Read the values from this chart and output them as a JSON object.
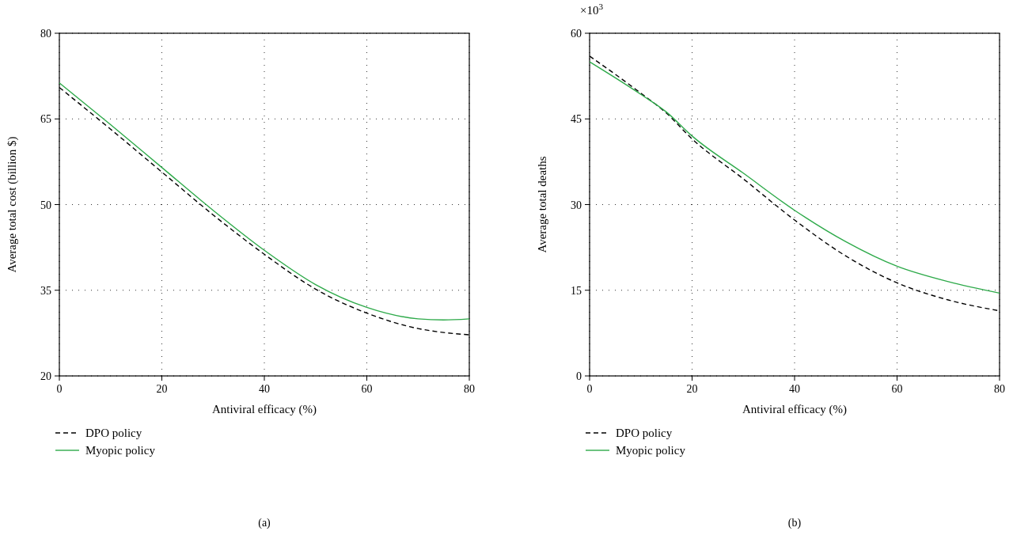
{
  "chart_data": [
    {
      "type": "line",
      "title": "(a)",
      "xlabel": "Antiviral efficacy (%)",
      "ylabel": "Average total cost (billion $)",
      "xlim": [
        0,
        80
      ],
      "xticks": [
        0,
        20,
        40,
        60,
        80
      ],
      "ylim": [
        20,
        80
      ],
      "yticks": [
        20,
        35,
        50,
        65,
        80
      ],
      "grid": true,
      "legend": "bottom",
      "x": [
        0,
        10,
        20,
        30,
        40,
        50,
        60,
        70,
        75,
        80
      ],
      "series": [
        {
          "name": "DPO policy",
          "color": "#000000",
          "line_style": "dashed",
          "values": [
            70.5,
            63.2,
            55.7,
            48.2,
            41.3,
            35.2,
            31,
            28.3,
            27.6,
            27.2
          ]
        },
        {
          "name": "Myopic policy",
          "color": "#2eaa4a",
          "line_style": "solid",
          "values": [
            71.3,
            64,
            56.5,
            49,
            42,
            36,
            32,
            30,
            29.8,
            30
          ]
        }
      ]
    },
    {
      "type": "line",
      "title": "(b)",
      "xlabel": "Antiviral efficacy (%)",
      "ylabel": "Average total deaths",
      "annotations": [
        "×10$^{3}$"
      ],
      "xlim": [
        0,
        80
      ],
      "xticks": [
        0,
        20,
        40,
        60,
        80
      ],
      "ylim": [
        0,
        60
      ],
      "yticks": [
        0,
        15,
        30,
        45,
        60
      ],
      "grid": true,
      "legend": "bottom",
      "x": [
        0,
        10,
        15,
        20,
        30,
        40,
        50,
        60,
        70,
        80
      ],
      "series": [
        {
          "name": "DPO policy",
          "color": "#000000",
          "line_style": "dashed",
          "values": [
            56,
            49.5,
            46,
            41.5,
            34.5,
            27.3,
            21,
            16.3,
            13.3,
            11.4
          ]
        },
        {
          "name": "Myopic policy",
          "color": "#2eaa4a",
          "line_style": "solid",
          "values": [
            55,
            49.3,
            46.2,
            42,
            35.5,
            29,
            23.5,
            19.2,
            16.5,
            14.5
          ]
        }
      ]
    }
  ]
}
